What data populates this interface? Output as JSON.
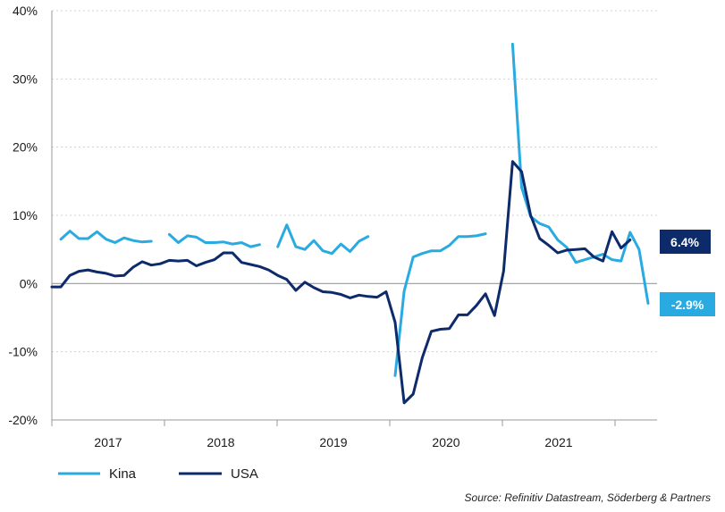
{
  "chart_data": {
    "type": "line",
    "ylim": [
      -20,
      40
    ],
    "y_ticks": [
      "40%",
      "30%",
      "20%",
      "10%",
      "0%",
      "-10%",
      "-20%"
    ],
    "x_tick_labels": [
      "2017",
      "2018",
      "2019",
      "2020",
      "2021"
    ],
    "grid": "horizontal dotted",
    "legend_position": "bottom-left",
    "colors": {
      "kina": "#29abe2",
      "usa": "#0d2a6b",
      "zero_line": "#9a9a9a",
      "grid": "#d0d0d0"
    },
    "series": [
      {
        "name": "Kina",
        "color": "#29abe2",
        "values": [
          null,
          6.5,
          7.7,
          6.6,
          6.6,
          7.6,
          6.5,
          6.0,
          6.7,
          6.3,
          6.1,
          6.2,
          null,
          7.2,
          6.0,
          7.0,
          6.8,
          6.0,
          6.0,
          6.1,
          5.8,
          6.0,
          5.4,
          5.7,
          null,
          5.4,
          8.6,
          5.4,
          5.0,
          6.3,
          4.8,
          4.4,
          5.8,
          4.7,
          6.2,
          6.9,
          null,
          null,
          -13.5,
          -1.1,
          3.9,
          4.4,
          4.8,
          4.8,
          5.6,
          6.9,
          6.9,
          7.0,
          7.3,
          null,
          null,
          35.1,
          14.1,
          9.8,
          8.8,
          8.3,
          6.4,
          5.3,
          3.1,
          3.5,
          3.9,
          4.3,
          3.5,
          3.3,
          7.5,
          5.0,
          -2.9
        ]
      },
      {
        "name": "USA",
        "color": "#0d2a6b",
        "values": [
          -0.5,
          -0.5,
          1.2,
          1.8,
          2.0,
          1.7,
          1.5,
          1.1,
          1.2,
          2.4,
          3.2,
          2.7,
          2.9,
          3.4,
          3.3,
          3.4,
          2.6,
          3.1,
          3.5,
          4.5,
          4.5,
          3.1,
          2.8,
          2.5,
          2.0,
          1.2,
          0.6,
          -1.0,
          0.2,
          -0.6,
          -1.2,
          -1.3,
          -1.6,
          -2.1,
          -1.7,
          -1.9,
          -2.0,
          -1.2,
          -5.7,
          -17.5,
          -16.2,
          -10.9,
          -7.0,
          -6.7,
          -6.6,
          -4.6,
          -4.6,
          -3.2,
          -1.5,
          -4.7,
          1.8,
          17.9,
          16.4,
          10.0,
          6.6,
          5.6,
          4.5,
          4.9,
          5.0,
          5.1,
          3.9,
          3.3,
          7.6,
          5.2,
          6.4
        ]
      }
    ],
    "end_labels": {
      "kina": "-2.9%",
      "usa": "6.4%"
    },
    "source": "Source: Refinitiv Datastream, Söderberg & Partners"
  },
  "legend": {
    "kina": "Kina",
    "usa": "USA"
  }
}
